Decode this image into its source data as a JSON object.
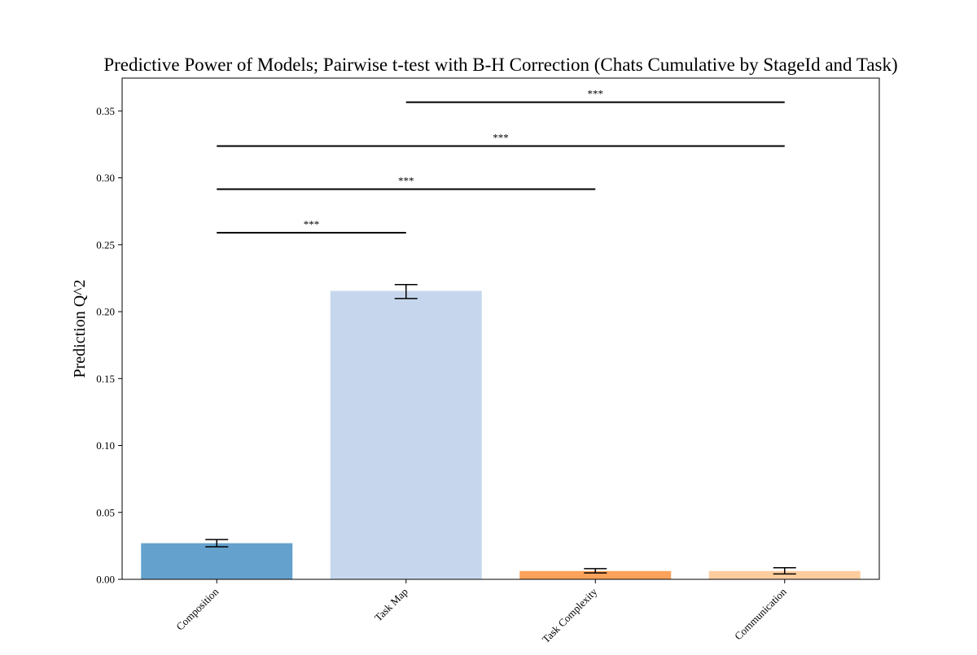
{
  "chart_data": {
    "type": "bar",
    "title": "Predictive Power of Models; Pairwise t-test with B-H Correction (Chats Cumulative by StageId and Task)",
    "xlabel": "",
    "ylabel": "Prediction Q^2",
    "categories": [
      "Composition",
      "Task Map",
      "Task Complexity",
      "Communication"
    ],
    "values": [
      0.027,
      0.2155,
      0.0062,
      0.0062
    ],
    "error": [
      [
        0.0243,
        0.0297
      ],
      [
        0.2098,
        0.2202
      ],
      [
        0.0048,
        0.008
      ],
      [
        0.004,
        0.0087
      ]
    ],
    "colors": [
      "#64a1cc",
      "#c6d7ed",
      "#fda25b",
      "#fecd9e"
    ],
    "ylim": [
      0,
      0.3745
    ],
    "yticks": [
      0.0,
      0.05,
      0.1,
      0.15,
      0.2,
      0.25,
      0.3,
      0.35
    ],
    "ytick_labels": [
      "0.00",
      "0.05",
      "0.10",
      "0.15",
      "0.20",
      "0.25",
      "0.30",
      "0.35"
    ],
    "grid": false,
    "significance": [
      {
        "from": 0,
        "to": 1,
        "y": 0.259,
        "label": "***"
      },
      {
        "from": 0,
        "to": 2,
        "y": 0.2915,
        "label": "***"
      },
      {
        "from": 0,
        "to": 3,
        "y": 0.3237,
        "label": "***"
      },
      {
        "from": 1,
        "to": 3,
        "y": 0.3565,
        "label": "***"
      }
    ]
  }
}
